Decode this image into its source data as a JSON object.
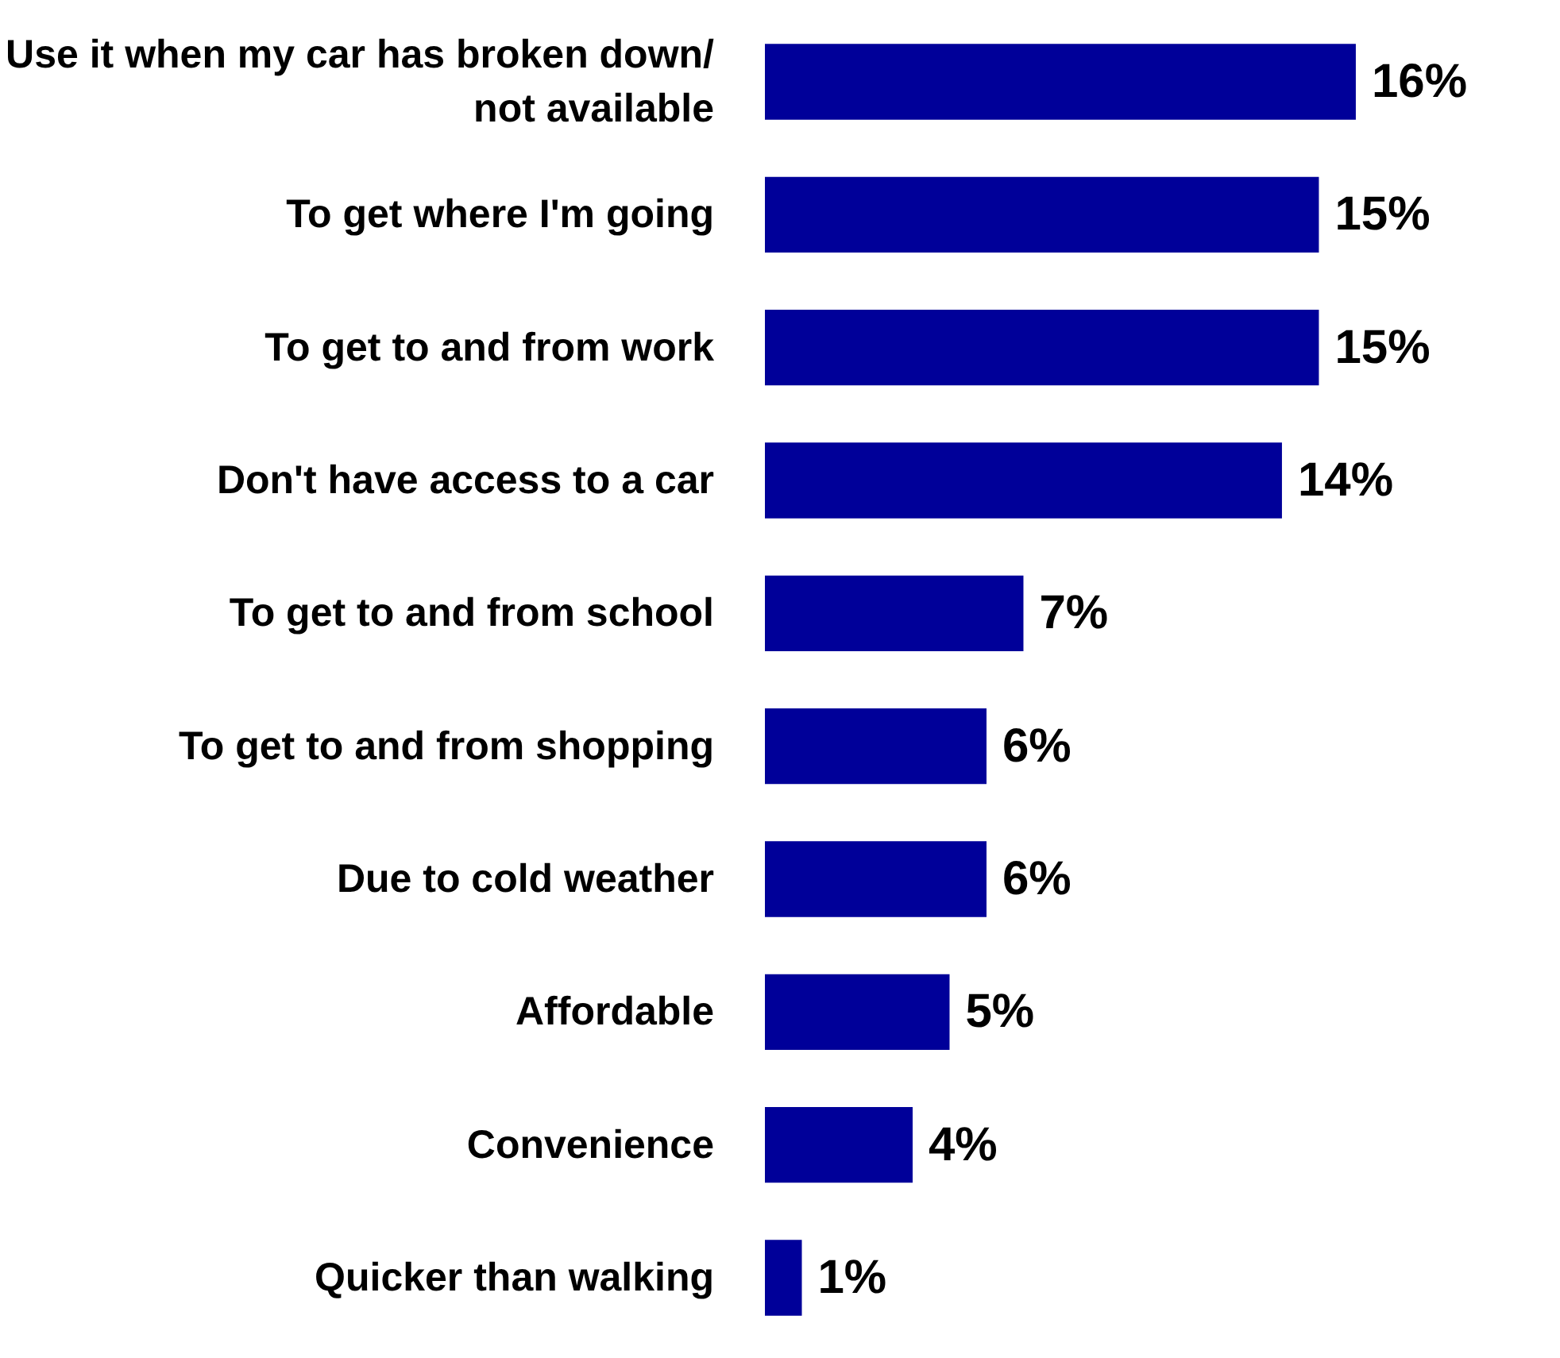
{
  "chart_data": {
    "type": "bar",
    "orientation": "horizontal",
    "categories": [
      "Use it when my car has broken down/\nnot available",
      "To get where I'm going",
      "To get to and from work",
      "Don't have access to a car",
      "To get to and from school",
      "To get to and from shopping",
      "Due to cold weather",
      "Affordable",
      "Convenience",
      "Quicker than walking"
    ],
    "values": [
      16,
      15,
      15,
      14,
      7,
      6,
      6,
      5,
      4,
      1
    ],
    "value_labels": [
      "16%",
      "15%",
      "15%",
      "14%",
      "7%",
      "6%",
      "6%",
      "5%",
      "4%",
      "1%"
    ],
    "color": "#000099",
    "grid": false
  }
}
